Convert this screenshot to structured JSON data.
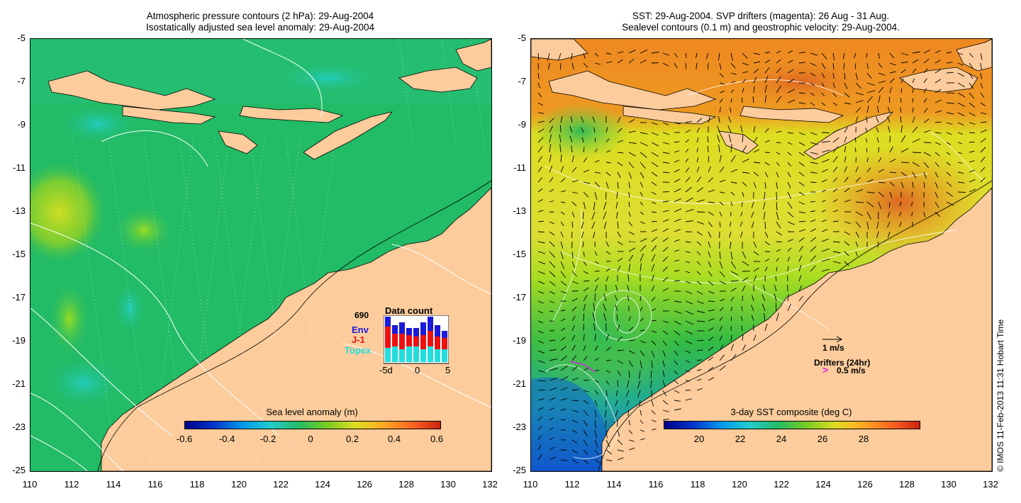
{
  "left": {
    "title_line1": "Atmospheric pressure contours (2 hPa): 29-Aug-2004",
    "title_line2": "Isostatically adjusted sea level anomaly: 29-Aug-2004",
    "colorbar_label": "Sea level anomaly (m)",
    "colorbar_ticks": [
      "-0.6",
      "-0.4",
      "-0.2",
      "0",
      "0.2",
      "0.4",
      "0.6"
    ],
    "inset": {
      "count": "690",
      "title": "Data count",
      "sat1": "Env",
      "sat2": "J-1",
      "sat3": "Topex",
      "xticks": [
        "-5d",
        "0",
        "5"
      ],
      "colors": {
        "Env": "#1a1ad8",
        "J-1": "#ee1111",
        "Topex": "#22dddd"
      }
    }
  },
  "right": {
    "title_line1": "SST: 29-Aug-2004. SVP drifters (magenta): 26 Aug - 31 Aug.",
    "title_line2": "Sealevel contours (0.1 m) and geostrophic velocity: 29-Aug-2004.",
    "colorbar_label": "3-day SST composite (deg C)",
    "colorbar_ticks": [
      "20",
      "22",
      "24",
      "26",
      "28"
    ],
    "velocity_scale": "1 m/s",
    "drifters_label": "Drifters (24hr)",
    "drifters_scale": "0.5 m/s"
  },
  "axes": {
    "y_ticks": [
      "-5",
      "-7",
      "-9",
      "-11",
      "-13",
      "-15",
      "-17",
      "-19",
      "-21",
      "-23",
      "-25"
    ],
    "x_ticks": [
      "110",
      "112",
      "114",
      "116",
      "118",
      "120",
      "122",
      "124",
      "126",
      "128",
      "130",
      "132"
    ]
  },
  "credit": "© IMOS 11-Feb-2013 11:31 Hobart Time",
  "colors": {
    "land": "#fccc9c",
    "ocean_left": "#22bb66",
    "ocean_right": "#e8d020"
  }
}
